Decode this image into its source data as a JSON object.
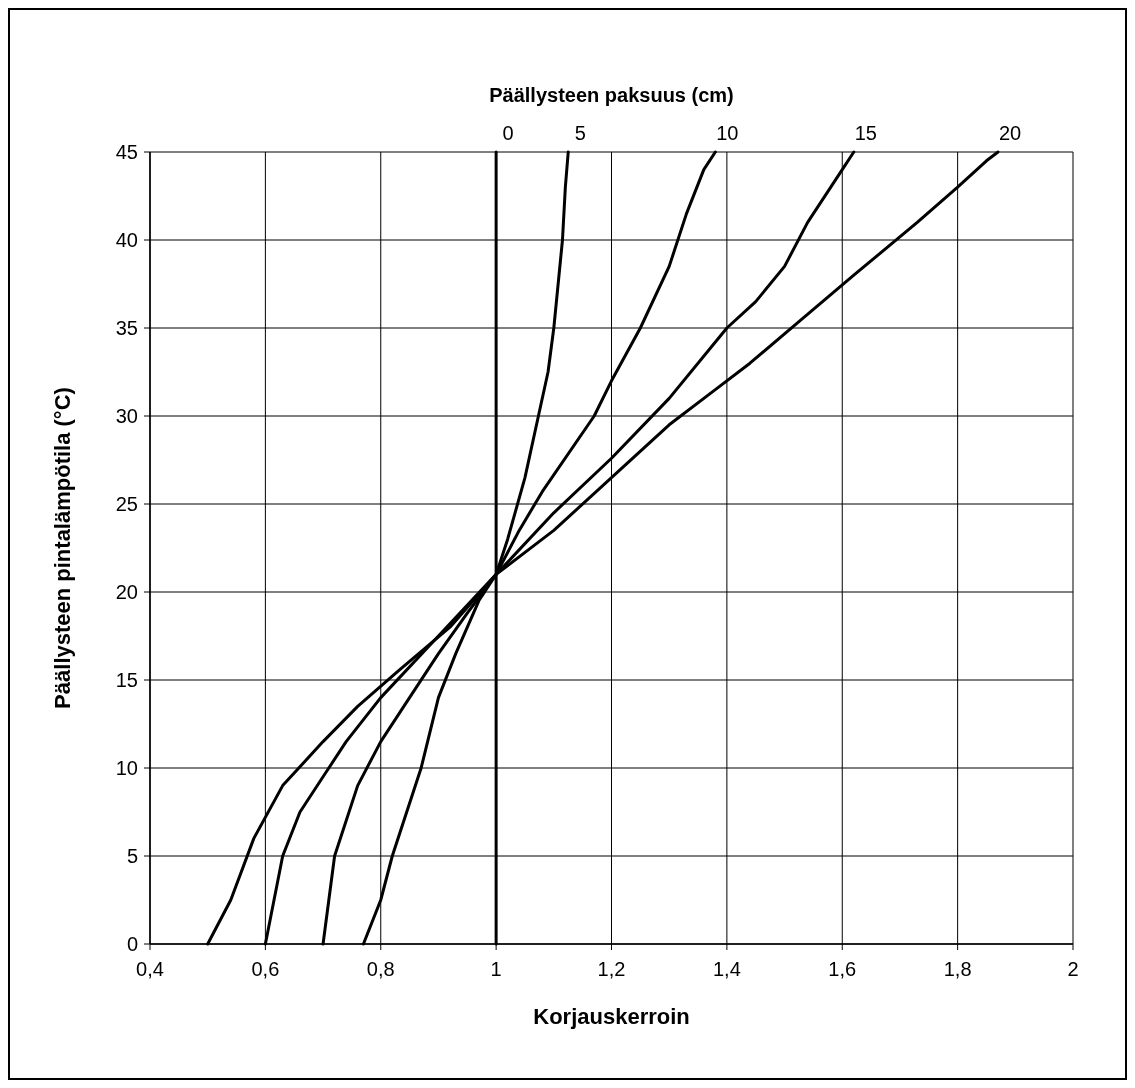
{
  "chart_data": {
    "type": "line",
    "xlabel": "Korjauskerroin",
    "ylabel": "Päällysteen pintalämpötila (°C)",
    "legend_title": "Päällysteen paksuus (cm)",
    "grid": true,
    "marker": "none",
    "line_style": "solid",
    "xlim": [
      0.4,
      2
    ],
    "ylim": [
      0,
      45
    ],
    "xticks": [
      {
        "value": 0.4,
        "label": "0,4"
      },
      {
        "value": 0.6,
        "label": "0,6"
      },
      {
        "value": 0.8,
        "label": "0,8"
      },
      1,
      {
        "value": 1.2,
        "label": "1,2"
      },
      {
        "value": 1.4,
        "label": "1,4"
      },
      {
        "value": 1.6,
        "label": "1,6"
      },
      {
        "value": 1.8,
        "label": "1,8"
      },
      2
    ],
    "yticks": [
      0,
      5,
      10,
      15,
      20,
      25,
      30,
      35,
      40,
      45
    ],
    "series": [
      {
        "name": "0",
        "color": "#000000",
        "x": [
          1,
          1
        ],
        "values": [
          0,
          45
        ]
      },
      {
        "name": "5",
        "color": "#000000",
        "x": [
          0.77,
          0.8,
          0.82,
          0.87,
          0.9,
          0.93,
          0.97,
          1,
          1.02,
          1.05,
          1.07,
          1.09,
          1.1,
          1.115,
          1.12,
          1.125
        ],
        "values": [
          0,
          2.5,
          5,
          10,
          14,
          16.5,
          19.5,
          21,
          23,
          26.5,
          29.5,
          32.5,
          35,
          40,
          43,
          45
        ]
      },
      {
        "name": "10",
        "color": "#000000",
        "x": [
          0.7,
          0.72,
          0.76,
          0.8,
          0.84,
          0.9,
          0.95,
          1,
          1.04,
          1.08,
          1.17,
          1.2,
          1.25,
          1.3,
          1.33,
          1.36,
          1.38
        ],
        "values": [
          0,
          5,
          9,
          11.5,
          13.5,
          16.5,
          18.8,
          21,
          23.5,
          25.7,
          30,
          32,
          35,
          38.5,
          41.5,
          44,
          45
        ]
      },
      {
        "name": "15",
        "color": "#000000",
        "x": [
          0.6,
          0.63,
          0.66,
          0.7,
          0.74,
          0.8,
          0.9,
          1,
          1.1,
          1.2,
          1.3,
          1.4,
          1.45,
          1.5,
          1.54,
          1.6,
          1.62
        ],
        "values": [
          0,
          5,
          7.5,
          9.5,
          11.5,
          14,
          17.5,
          21,
          24.5,
          27.6,
          31,
          35,
          36.5,
          38.5,
          41,
          44,
          45
        ]
      },
      {
        "name": "20",
        "color": "#000000",
        "x": [
          0.5,
          0.54,
          0.58,
          0.63,
          0.7,
          0.76,
          0.83,
          0.92,
          1,
          1.1,
          1.2,
          1.3,
          1.38,
          1.44,
          1.53,
          1.62,
          1.73,
          1.8,
          1.85,
          1.87
        ],
        "values": [
          0,
          2.5,
          6,
          9,
          11.5,
          13.5,
          15.5,
          18,
          21,
          23.5,
          26.5,
          29.5,
          31.5,
          33,
          35.5,
          38,
          41,
          43,
          44.5,
          45
        ]
      }
    ]
  }
}
